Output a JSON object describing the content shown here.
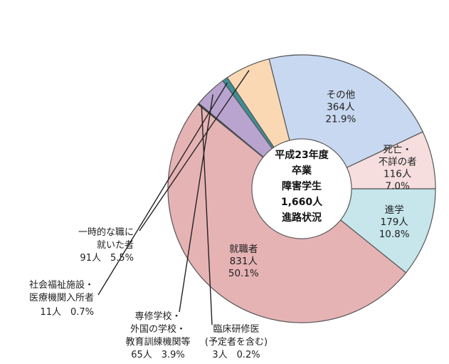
{
  "chart_data": {
    "type": "pie",
    "donut": true,
    "center_text": [
      "平成23年度",
      "卒業",
      "障害学生",
      "1,660人",
      "進路状況"
    ],
    "total": 1660,
    "slices": [
      {
        "name": "進学",
        "count": 179,
        "percent": 10.8,
        "color": "#c6e6ec",
        "label_lines": [
          "進学",
          "179人",
          "10.8%"
        ],
        "placement": "inside"
      },
      {
        "name": "就職者",
        "count": 831,
        "percent": 50.1,
        "color": "#e6b3b5",
        "label_lines": [
          "就職者",
          "831人",
          "50.1%"
        ],
        "placement": "inside"
      },
      {
        "name": "臨床研修医",
        "count": 3,
        "percent": 0.2,
        "color": "#1a1a1a",
        "label_lines": [
          "臨床研修医",
          "(予定者を含む)",
          "3人　0.2%"
        ],
        "placement": "outside"
      },
      {
        "name": "専修学校・外国の学校・教育訓練機関等",
        "count": 65,
        "percent": 3.9,
        "color": "#b9a4d0",
        "label_lines": [
          "専修学校・",
          "外国の学校・",
          "教育訓練機関等",
          "65人　3.9%"
        ],
        "placement": "outside"
      },
      {
        "name": "社会福祉施設・医療機関入所者",
        "count": 11,
        "percent": 0.7,
        "color": "#3d8f96",
        "label_lines": [
          "社会福祉施設・",
          "医療機関入所者",
          "11人　0.7%"
        ],
        "placement": "outside"
      },
      {
        "name": "一時的な職に就いた者",
        "count": 91,
        "percent": 5.5,
        "color": "#fbd8b4",
        "label_lines": [
          "一時的な職に",
          "就いた者",
          "91人　5.5%"
        ],
        "placement": "outside"
      },
      {
        "name": "その他",
        "count": 364,
        "percent": 21.9,
        "color": "#c8d8f0",
        "label_lines": [
          "その他",
          "364人",
          "21.9%"
        ],
        "placement": "inside"
      },
      {
        "name": "死亡・不詳の者",
        "count": 116,
        "percent": 7.0,
        "color": "#f6dede",
        "label_lines": [
          "死亡・",
          "不詳の者",
          "116人",
          "7.0%"
        ],
        "placement": "inside"
      }
    ]
  }
}
